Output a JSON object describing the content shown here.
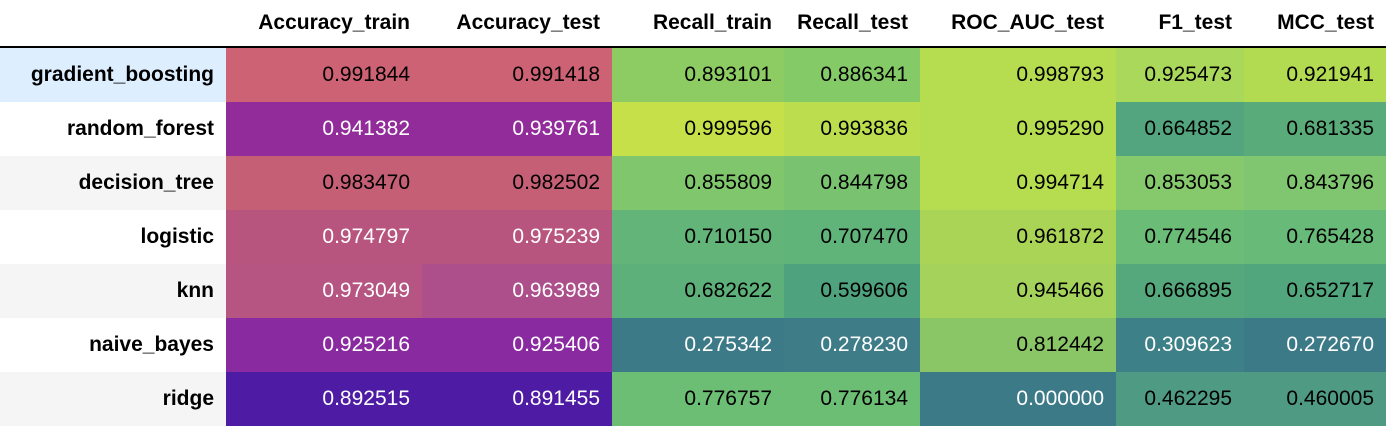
{
  "columns": [
    "Accuracy_train",
    "Accuracy_test",
    "Recall_train",
    "Recall_test",
    "ROC_AUC_test",
    "F1_test",
    "MCC_test"
  ],
  "rows": [
    {
      "name": "gradient_boosting",
      "values": [
        "0.991844",
        "0.991418",
        "0.893101",
        "0.886341",
        "0.998793",
        "0.925473",
        "0.921941"
      ]
    },
    {
      "name": "random_forest",
      "values": [
        "0.941382",
        "0.939761",
        "0.999596",
        "0.993836",
        "0.995290",
        "0.664852",
        "0.681335"
      ]
    },
    {
      "name": "decision_tree",
      "values": [
        "0.983470",
        "0.982502",
        "0.855809",
        "0.844798",
        "0.994714",
        "0.853053",
        "0.843796"
      ]
    },
    {
      "name": "logistic",
      "values": [
        "0.974797",
        "0.975239",
        "0.710150",
        "0.707470",
        "0.961872",
        "0.774546",
        "0.765428"
      ]
    },
    {
      "name": "knn",
      "values": [
        "0.973049",
        "0.963989",
        "0.682622",
        "0.599606",
        "0.945466",
        "0.666895",
        "0.652717"
      ]
    },
    {
      "name": "naive_bayes",
      "values": [
        "0.925216",
        "0.925406",
        "0.275342",
        "0.278230",
        "0.812442",
        "0.309623",
        "0.272670"
      ]
    },
    {
      "name": "ridge",
      "values": [
        "0.892515",
        "0.891455",
        "0.776757",
        "0.776134",
        "0.000000",
        "0.462295",
        "0.460005"
      ]
    }
  ],
  "cell_colors": [
    [
      "#cc6274",
      "#cc6274",
      "#8ccc62",
      "#84ca66",
      "#b6dc50",
      "#aad85a",
      "#b2db52"
    ],
    [
      "#922c9b",
      "#922c9b",
      "#c6e04a",
      "#bcde4e",
      "#b6dc50",
      "#52a57e",
      "#5aab7a"
    ],
    [
      "#c55f76",
      "#c55f76",
      "#80c66c",
      "#78c270",
      "#b6dc50",
      "#86c86c",
      "#80c670"
    ],
    [
      "#b8557f",
      "#b8557f",
      "#62b478",
      "#60b47a",
      "#aad456",
      "#6abc76",
      "#68ba78"
    ],
    [
      "#b65582",
      "#ac4f8a",
      "#5eb07a",
      "#4ea27e",
      "#a4d25a",
      "#54a87c",
      "#52a67e"
    ],
    [
      "#8a2aa0",
      "#8a2aa0",
      "#3c7a88",
      "#3e7c88",
      "#8ac666",
      "#3e8088",
      "#3c7a88"
    ],
    [
      "#4e1ca4",
      "#4e1ca4",
      "#6cbe74",
      "#6cbe74",
      "#3c7a88",
      "#4e9a82",
      "#4e9a82"
    ]
  ],
  "highlighted_row": 0
}
